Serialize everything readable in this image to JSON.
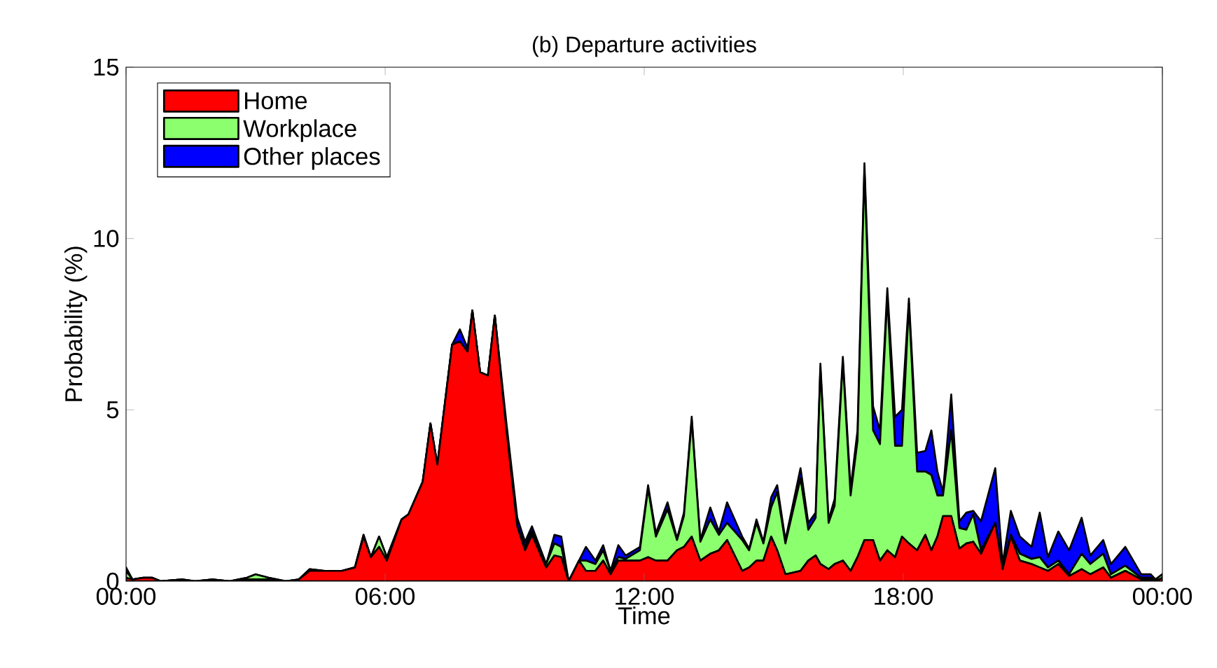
{
  "chart_data": {
    "type": "area",
    "stacked": true,
    "title": "(b) Departure activities",
    "xlabel": "Time",
    "ylabel": "Probability (%)",
    "xlim": [
      0,
      24
    ],
    "ylim": [
      0,
      15
    ],
    "xticks": [
      {
        "value": 0,
        "label": "00:00"
      },
      {
        "value": 6,
        "label": "06:00"
      },
      {
        "value": 12,
        "label": "12:00"
      },
      {
        "value": 18,
        "label": "18:00"
      },
      {
        "value": 24,
        "label": "00:00"
      }
    ],
    "yticks": [
      0,
      5,
      10,
      15
    ],
    "legend": "top left",
    "x": [
      0.0,
      0.15,
      0.4,
      0.6,
      0.8,
      1.3,
      1.6,
      2.0,
      2.4,
      2.8,
      3.0,
      3.3,
      3.7,
      4.0,
      4.25,
      4.6,
      5.0,
      5.3,
      5.5,
      5.67,
      5.86,
      6.04,
      6.38,
      6.54,
      6.87,
      7.05,
      7.21,
      7.55,
      7.73,
      7.91,
      8.02,
      8.2,
      8.38,
      8.54,
      8.81,
      9.06,
      9.24,
      9.4,
      9.73,
      9.92,
      10.08,
      10.25,
      10.49,
      10.65,
      10.87,
      11.05,
      11.22,
      11.4,
      11.57,
      11.9,
      12.09,
      12.27,
      12.54,
      12.76,
      12.92,
      13.1,
      13.3,
      13.53,
      13.73,
      13.92,
      14.27,
      14.43,
      14.6,
      14.76,
      14.94,
      15.08,
      15.27,
      15.62,
      15.8,
      15.97,
      16.08,
      16.27,
      16.41,
      16.6,
      16.78,
      16.94,
      17.1,
      17.3,
      17.46,
      17.63,
      17.81,
      17.97,
      18.13,
      18.32,
      18.51,
      18.65,
      18.79,
      18.92,
      19.11,
      19.3,
      19.46,
      19.62,
      19.8,
      20.13,
      20.3,
      20.49,
      20.7,
      20.97,
      21.16,
      21.35,
      21.59,
      21.84,
      22.13,
      22.33,
      22.63,
      22.81,
      23.14,
      23.51,
      23.73,
      23.84,
      24.0
    ],
    "series": [
      {
        "name": "Home",
        "color": "#ff0000",
        "values": [
          0.1,
          0.05,
          0.1,
          0.1,
          0,
          0.05,
          0,
          0.05,
          0,
          0.05,
          0.05,
          0.05,
          0,
          0.05,
          0.3,
          0.3,
          0.3,
          0.4,
          1.3,
          0.7,
          1.0,
          0.6,
          1.8,
          1.95,
          2.9,
          4.6,
          3.4,
          6.9,
          7.0,
          6.7,
          7.9,
          6.1,
          6.0,
          7.75,
          4.4,
          1.6,
          0.9,
          1.35,
          0.4,
          0.75,
          0.7,
          0,
          0.6,
          0.3,
          0.3,
          0.6,
          0.2,
          0.6,
          0.6,
          0.6,
          0.7,
          0.6,
          0.6,
          0.9,
          1.0,
          1.3,
          0.6,
          0.8,
          0.9,
          1.2,
          0.3,
          0.4,
          0.6,
          0.6,
          1.3,
          0.9,
          0.2,
          0.3,
          0.6,
          0.75,
          0.5,
          0.35,
          0.5,
          0.6,
          0.3,
          0.7,
          1.2,
          1.2,
          0.6,
          0.9,
          0.7,
          1.3,
          1.1,
          0.9,
          1.35,
          0.9,
          1.3,
          1.9,
          1.9,
          0.95,
          1.1,
          1.15,
          0.8,
          1.7,
          0.35,
          1.3,
          0.6,
          0.5,
          0.4,
          0.3,
          0.5,
          0.15,
          0.35,
          0.2,
          0.4,
          0.1,
          0.3,
          0.05,
          0.05,
          0,
          0.1
        ]
      },
      {
        "name": "Workplace",
        "color": "#8cff6e",
        "values": [
          0.2,
          0,
          0,
          0,
          0,
          0,
          0,
          0,
          0,
          0.05,
          0.15,
          0.05,
          0,
          0,
          0.05,
          0,
          0,
          0,
          0.05,
          0,
          0.3,
          0.1,
          0,
          0,
          0,
          0,
          0,
          0,
          0,
          0,
          0,
          0,
          0,
          0,
          0,
          0,
          0.1,
          0.1,
          0.1,
          0.35,
          0.3,
          0,
          0,
          0.3,
          0.2,
          0.3,
          0.1,
          0.1,
          0.05,
          0.3,
          2.0,
          0.7,
          1.5,
          0.3,
          0.9,
          3.4,
          0.55,
          1.0,
          0.45,
          0.5,
          0.9,
          0.5,
          1.1,
          0.5,
          0.85,
          1.7,
          0.9,
          2.7,
          0.9,
          1.1,
          5.7,
          1.35,
          1.7,
          5.8,
          2.2,
          3.4,
          10.8,
          3.2,
          3.4,
          7.4,
          3.25,
          2.65,
          7.0,
          2.3,
          1.85,
          2.2,
          1.2,
          0.6,
          2.5,
          0.6,
          0.4,
          0.8,
          0.1,
          0,
          0.05,
          0.05,
          0.2,
          0.15,
          0.3,
          0.1,
          0.1,
          0.05,
          0.45,
          0.3,
          0.4,
          0.1,
          0.15,
          0.05,
          0.05,
          0.05,
          0.1
        ]
      },
      {
        "name": "Other places",
        "color": "#0000ff",
        "values": [
          0.1,
          0,
          0,
          0,
          0,
          0,
          0,
          0,
          0,
          0,
          0,
          0,
          0,
          0,
          0,
          0,
          0,
          0,
          0,
          0,
          0,
          0,
          0,
          0,
          0,
          0,
          0,
          0,
          0.35,
          0.1,
          0,
          0,
          0,
          0,
          0.2,
          0.25,
          0.15,
          0.15,
          0,
          0.25,
          0.3,
          0,
          0,
          0.4,
          0.1,
          0.15,
          0,
          0.35,
          0.1,
          0.1,
          0.1,
          0.1,
          0.2,
          0.05,
          0.1,
          0.1,
          0.05,
          0.35,
          0.1,
          0.6,
          0.1,
          0.05,
          0.1,
          0.05,
          0.3,
          0.2,
          0.1,
          0.3,
          0.2,
          0.15,
          0.15,
          0.1,
          0.2,
          0.15,
          0.2,
          0.3,
          0.2,
          0.7,
          0.4,
          0.25,
          0.85,
          1.05,
          0.15,
          0.55,
          0.6,
          1.3,
          0.7,
          0.1,
          1.05,
          0.2,
          0.5,
          0.1,
          0.85,
          1.6,
          0.1,
          0.7,
          0.5,
          0.35,
          1.3,
          0.3,
          0.85,
          0.7,
          1.05,
          0.25,
          0.4,
          0.3,
          0.55,
          0.1,
          0.1,
          0,
          0
        ]
      }
    ]
  }
}
